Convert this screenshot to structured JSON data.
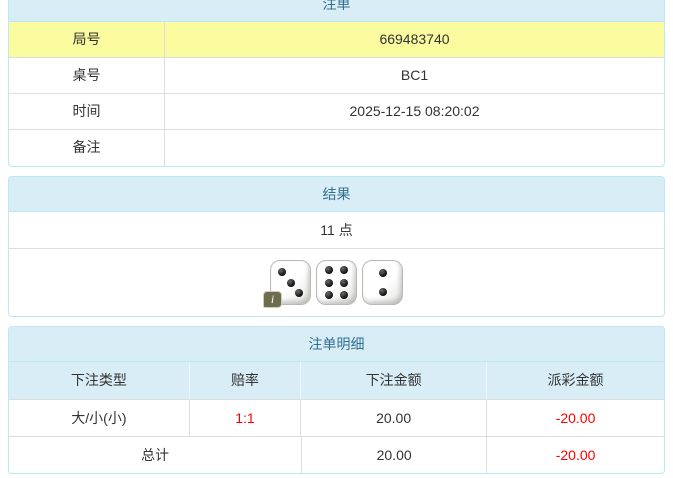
{
  "colors": {
    "panel_border": "#bce8f1",
    "heading_bg": "#d9edf7",
    "heading_text": "#31708f",
    "highlight_row_bg": "#fafa9e",
    "negative_amount": "#ff0000",
    "odds_text": "#ff0000",
    "row_divider": "#dddddd",
    "body_text": "#333333"
  },
  "bet_info": {
    "title": "注单",
    "rows": [
      {
        "label": "局号",
        "value": "669483740"
      },
      {
        "label": "桌号",
        "value": "BC1"
      },
      {
        "label": "时间",
        "value": "2025-12-15 08:20:02"
      },
      {
        "label": "备注",
        "value": ""
      }
    ]
  },
  "result": {
    "title": "结果",
    "points": "11 点",
    "dice": [
      3,
      6,
      2
    ],
    "info_badge": "i"
  },
  "detail": {
    "title": "注单明细",
    "columns": [
      "下注类型",
      "赔率",
      "下注金额",
      "派彩金额"
    ],
    "rows": [
      {
        "bet_type": "大/小(小)",
        "odds": "1:1",
        "bet_amount": "20.00",
        "payout": "-20.00"
      }
    ],
    "total": {
      "label": "总计",
      "bet_amount": "20.00",
      "payout": "-20.00"
    }
  }
}
